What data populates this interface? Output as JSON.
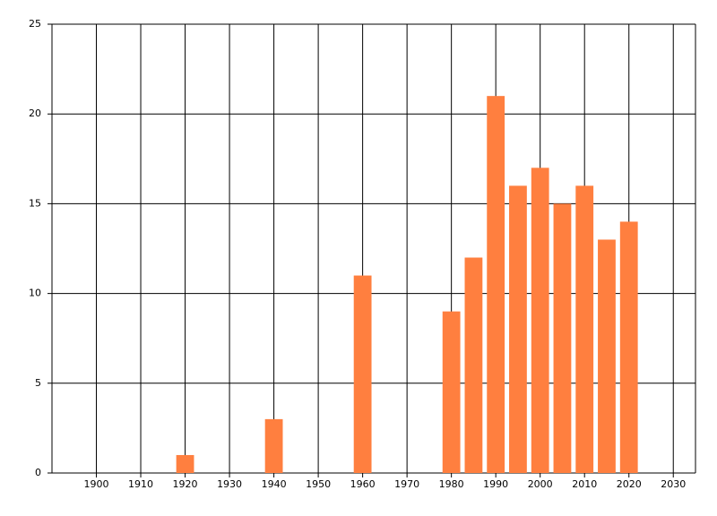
{
  "chart_data": {
    "type": "bar",
    "x": [
      1920,
      1940,
      1960,
      1980,
      1985,
      1990,
      1995,
      2000,
      2005,
      2010,
      2015,
      2020
    ],
    "values": [
      1,
      3,
      11,
      9,
      12,
      21,
      16,
      17,
      15,
      16,
      13,
      14
    ],
    "color": "#ff7f3f",
    "xlim": [
      1890,
      2035
    ],
    "xticks": [
      1900,
      1910,
      1920,
      1930,
      1940,
      1950,
      1960,
      1970,
      1980,
      1990,
      2000,
      2010,
      2020,
      2030
    ],
    "ylim": [
      0,
      25
    ],
    "yticks": [
      0,
      5,
      10,
      15,
      20,
      25
    ],
    "grid": true
  }
}
